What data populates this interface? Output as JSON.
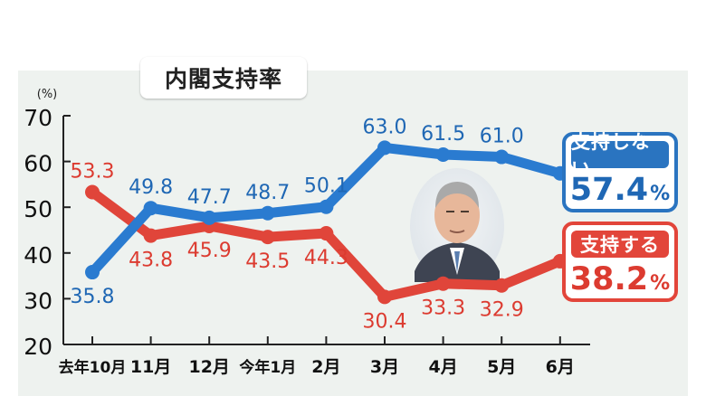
{
  "title": "内閣支持率",
  "unit_label": "(%)",
  "colors": {
    "support": "#2a7bd0",
    "oppose": "#e0453a",
    "support_text": "#1f67b4",
    "oppose_text": "#dc3b30"
  },
  "legend": {
    "support": {
      "label": "支持しない",
      "value": "57.4",
      "unit": "%"
    },
    "oppose": {
      "label": "支持する",
      "value": "38.2",
      "unit": "%"
    }
  },
  "chart_data": {
    "type": "line",
    "categories": [
      "去年10月",
      "11月",
      "12月",
      "今年1月",
      "2月",
      "3月",
      "4月",
      "5月",
      "6月"
    ],
    "ylim": [
      20,
      70
    ],
    "yticks": [
      20,
      30,
      40,
      50,
      60,
      70
    ],
    "ylabel": "(%)",
    "series": [
      {
        "name": "支持しない",
        "values": [
          35.8,
          49.8,
          47.7,
          48.7,
          50.1,
          63.0,
          61.5,
          61.0,
          57.4
        ],
        "labels": [
          "35.8",
          "49.8",
          "47.7",
          "48.7",
          "50.1",
          "63.0",
          "61.5",
          "61.0",
          ""
        ]
      },
      {
        "name": "支持する",
        "values": [
          53.3,
          43.8,
          45.9,
          43.5,
          44.3,
          30.4,
          33.3,
          32.9,
          38.2
        ],
        "labels": [
          "53.3",
          "43.8",
          "45.9",
          "43.5",
          "44.3",
          "30.4",
          "33.3",
          "32.9",
          ""
        ]
      }
    ]
  }
}
